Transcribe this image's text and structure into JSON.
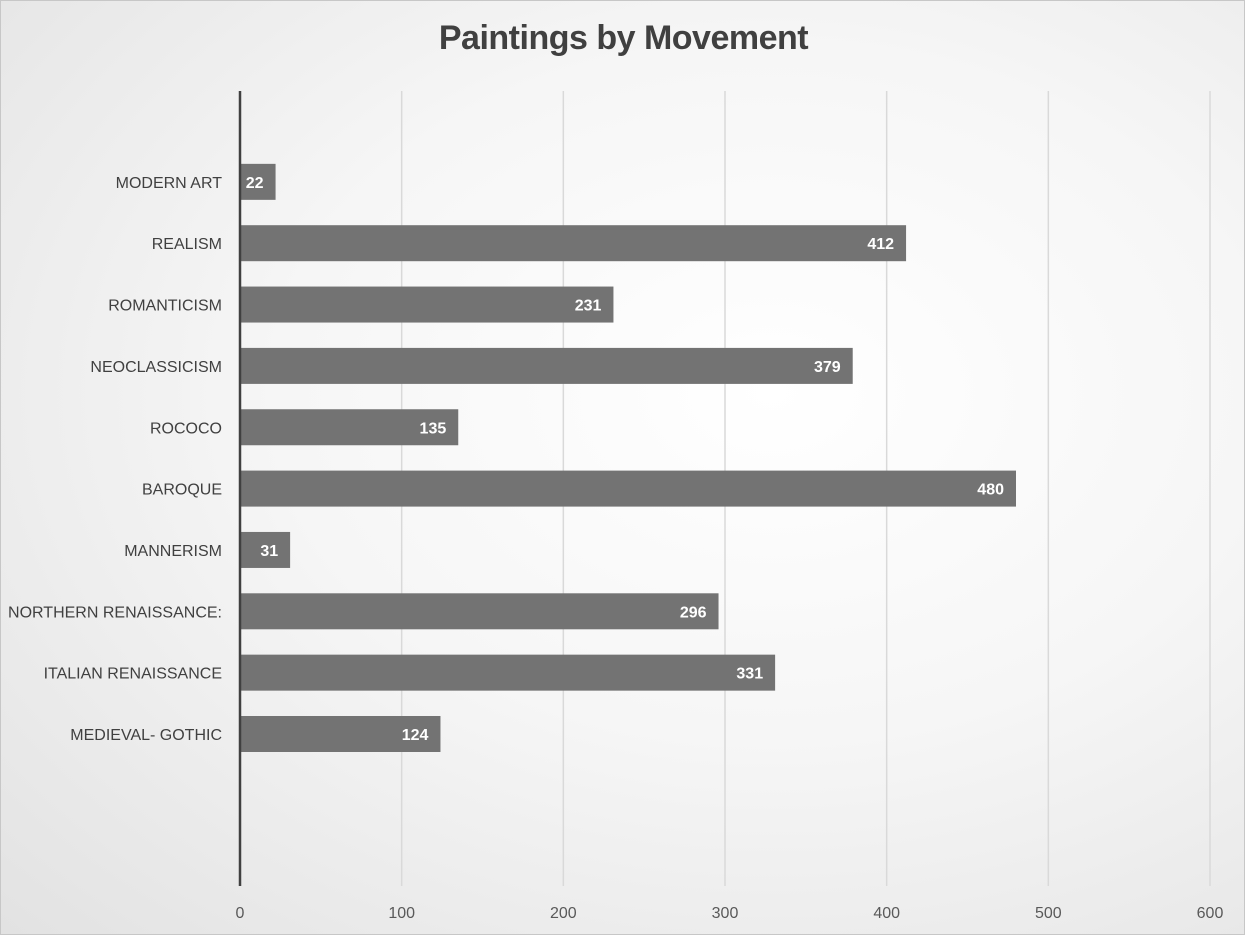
{
  "chart_data": {
    "type": "bar",
    "orientation": "horizontal",
    "title": "Paintings by Movement",
    "xlabel": "",
    "ylabel": "",
    "categories": [
      "MEDIEVAL- GOTHIC",
      "ITALIAN RENAISSANCE",
      "NORTHERN RENAISSANCE:",
      "MANNERISM",
      "BAROQUE",
      "ROCOCO",
      "NEOCLASSICISM",
      "ROMANTICISM",
      "REALISM",
      "MODERN ART"
    ],
    "values": [
      124,
      331,
      296,
      31,
      480,
      135,
      379,
      231,
      412,
      22
    ],
    "xlim": [
      0,
      600
    ],
    "xticks": [
      "0",
      "100",
      "200",
      "300",
      "400",
      "500",
      "600"
    ],
    "grid": "vertical",
    "data_labels": "inside-end",
    "legend": "none",
    "colors": {
      "bar": "#737373",
      "gridline": "#d9d9d9",
      "axis": "#404040",
      "text": "#404040",
      "data_label": "#ffffff"
    }
  }
}
